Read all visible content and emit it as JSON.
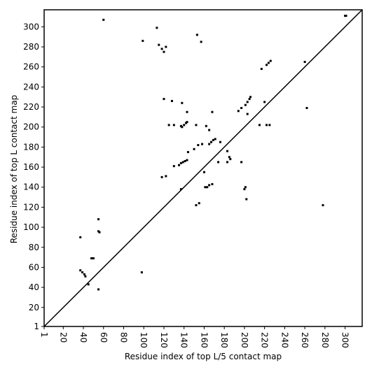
{
  "chart_data": {
    "type": "scatter",
    "xlabel": "Residue index of top L/5 contact map",
    "ylabel": "Residue index of top L contact map",
    "xlim": [
      1,
      317
    ],
    "ylim": [
      1,
      317
    ],
    "xticks": [
      1,
      20,
      40,
      60,
      80,
      100,
      120,
      140,
      160,
      180,
      200,
      220,
      240,
      260,
      280,
      300
    ],
    "yticks": [
      1,
      20,
      40,
      60,
      80,
      100,
      120,
      140,
      160,
      180,
      200,
      220,
      240,
      260,
      280,
      300
    ],
    "color": "#000000",
    "diagonal": true,
    "x": [
      135,
      137,
      139,
      141,
      143,
      138,
      140,
      142,
      143,
      165,
      167,
      169,
      171,
      201,
      203,
      205,
      206,
      222,
      224,
      226,
      37,
      39,
      41,
      42,
      55,
      56,
      48,
      50,
      115,
      118,
      120,
      122,
      99,
      300,
      301,
      260,
      262,
      278,
      98,
      152,
      155,
      163,
      165,
      168,
      200,
      201,
      202,
      137,
      122,
      118,
      130,
      125,
      130,
      120,
      128,
      138,
      143,
      152,
      162,
      165,
      168,
      150,
      154,
      158,
      176,
      183,
      185,
      186,
      183,
      174,
      197,
      194,
      203,
      197,
      215,
      222,
      225,
      217,
      220,
      45,
      55,
      37,
      55,
      60,
      153,
      157,
      113,
      137,
      144,
      160,
      161
    ],
    "y": [
      162,
      164,
      165,
      166,
      167,
      200,
      202,
      204,
      205,
      183,
      185,
      187,
      188,
      222,
      225,
      228,
      230,
      262,
      264,
      266,
      57,
      55,
      53,
      51,
      96,
      95,
      69,
      69,
      282,
      278,
      275,
      280,
      286,
      311,
      311,
      265,
      219,
      122,
      55,
      122,
      124,
      140,
      142,
      143,
      138,
      140,
      128,
      138,
      151,
      150,
      161,
      202,
      202,
      228,
      226,
      224,
      215,
      202,
      201,
      197,
      215,
      178,
      182,
      183,
      185,
      176,
      170,
      168,
      165,
      165,
      219,
      216,
      213,
      165,
      202,
      202,
      202,
      258,
      225,
      43,
      38,
      90,
      108,
      307,
      292,
      285,
      299,
      201,
      175,
      155,
      140
    ]
  }
}
